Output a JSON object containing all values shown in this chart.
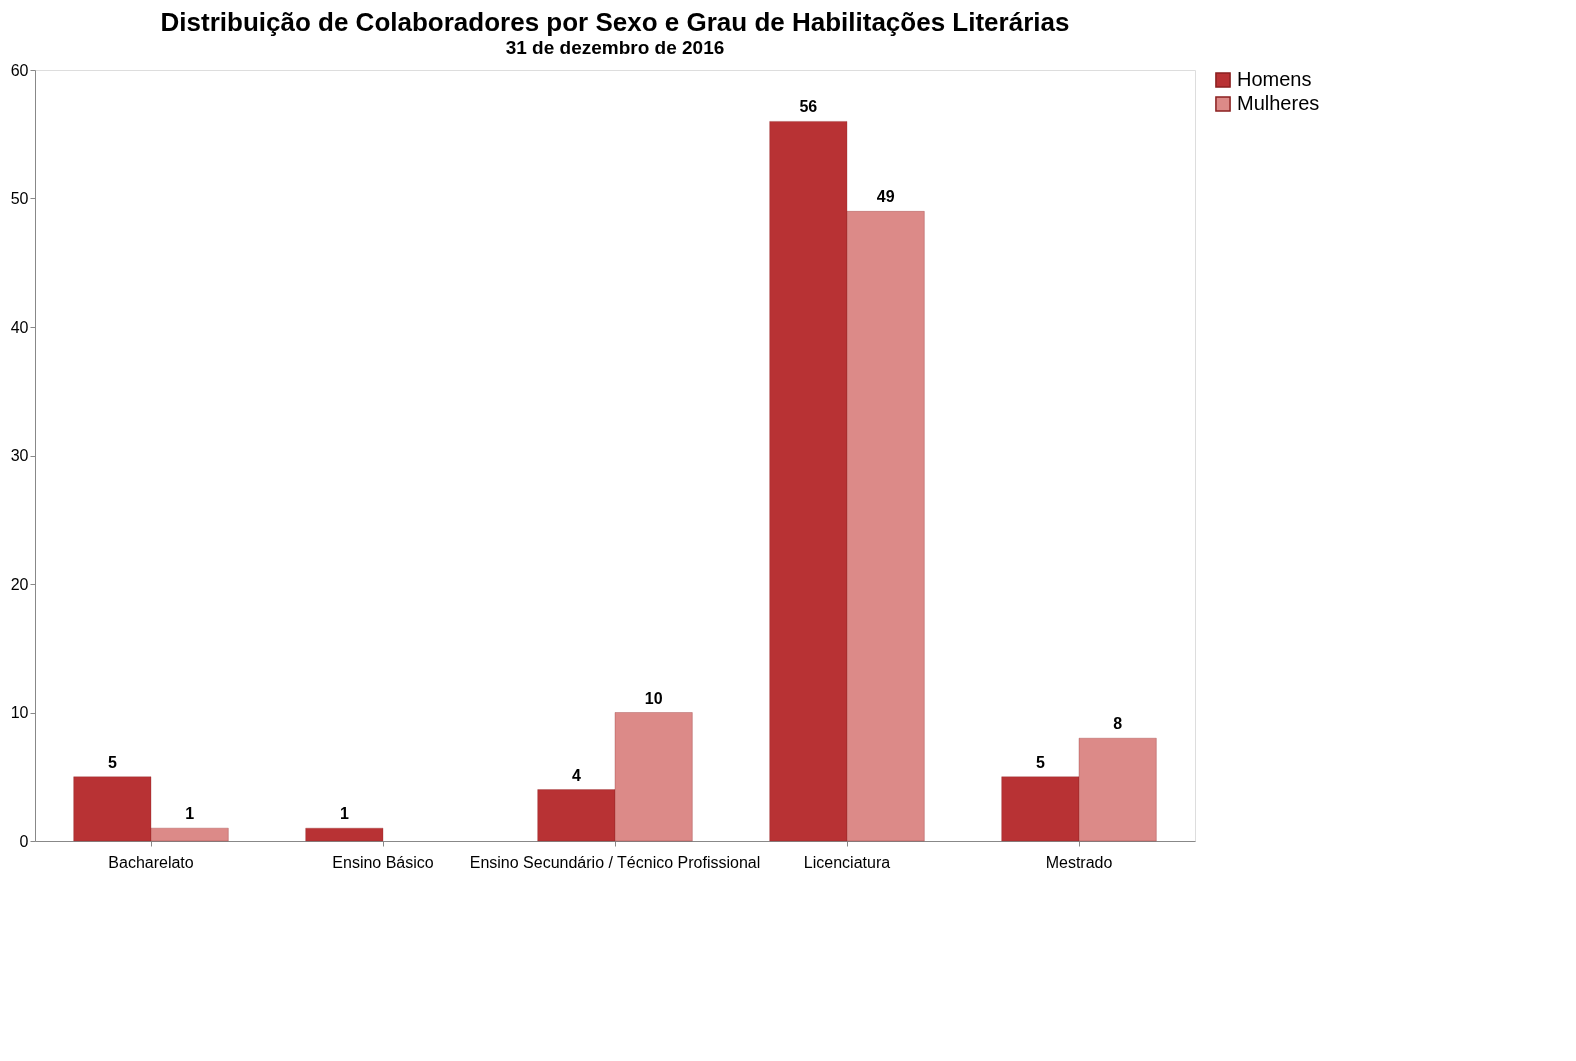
{
  "chart_data": {
    "type": "bar",
    "title": "Distribuição de Colaboradores por Sexo e Grau de Habilitações Literárias",
    "subtitle": "31 de dezembro de 2016",
    "categories": [
      "Bacharelato",
      "Ensino Básico",
      "Ensino Secundário / Técnico Profissional",
      "Licenciatura",
      "Mestrado"
    ],
    "series": [
      {
        "name": "Homens",
        "color": "#b83234",
        "values": [
          5,
          1,
          4,
          56,
          5
        ]
      },
      {
        "name": "Mulheres",
        "color": "#dc8a88",
        "values": [
          1,
          null,
          10,
          49,
          8
        ]
      }
    ],
    "ylim": [
      0,
      60
    ],
    "yticks": [
      0,
      10,
      20,
      30,
      40,
      50,
      60
    ],
    "grid": false,
    "legend": "right",
    "data_labels": true
  }
}
